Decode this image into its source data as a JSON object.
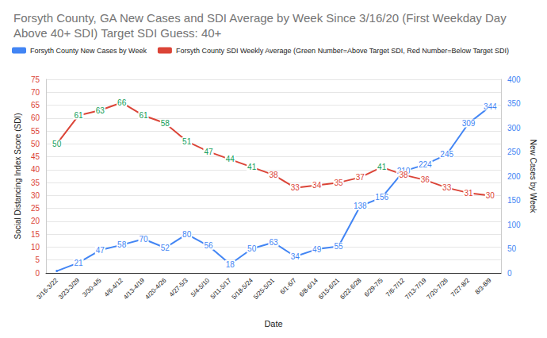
{
  "chart_data": {
    "type": "line",
    "title": "Forsyth County, GA New Cases and SDI Average by Week Since 3/16/20 (First Weekday Day Above 40+ SDI) Target SDI Guess: 40+",
    "x_label": "Date",
    "y_label": "Social Distancing Index Score (SDI)",
    "y2_label": "New Cases by Week",
    "categories": [
      "3/16-3/22",
      "3/23-3/29",
      "3/30-4/5",
      "4/6-4/12",
      "4/13-4/19",
      "4/20-4/26",
      "4/27-5/3",
      "5/4-5/10",
      "5/11-5/17",
      "5/18-5/24",
      "5/25-5/31",
      "6/1-6/7",
      "6/8-6/14",
      "6/15-6/21",
      "6/22-6/28",
      "6/29-7/5",
      "7/6-7/12",
      "7/13-7/19",
      "7/20-7/26",
      "7/27-8/2",
      "8/3-8/9"
    ],
    "series": [
      {
        "name": "Forsyth County New Cases by Week",
        "color": "#4285f4",
        "axis": "y2",
        "marker": "circle",
        "values": [
          4,
          21,
          47,
          58,
          70,
          52,
          80,
          56,
          18,
          50,
          63,
          34,
          49,
          55,
          138,
          156,
          210,
          224,
          245,
          309,
          344
        ],
        "value_labels": [
          null,
          "21",
          "47",
          "58",
          "70",
          "52",
          "80",
          "56",
          "18",
          "50",
          "63",
          "34",
          "49",
          "55",
          "138",
          "156",
          "210",
          "224",
          "245",
          "309",
          "344"
        ]
      },
      {
        "name": "Forsyth County SDI Weekly Average (Green Number=Above Target SDI, Red Number=Below Target SDI)",
        "color": "#db4437",
        "axis": "y",
        "marker": "circle",
        "values": [
          50,
          61,
          63,
          66,
          61,
          58,
          51,
          47,
          44,
          41,
          38,
          33,
          34,
          35,
          37,
          41,
          38,
          36,
          33,
          31,
          30
        ],
        "target_sdi": 40,
        "above_color": "#0f9d58",
        "below_color": "#db4437"
      }
    ],
    "ylim": [
      0,
      75
    ],
    "yticks": [
      0,
      5,
      10,
      15,
      20,
      25,
      30,
      35,
      40,
      45,
      50,
      55,
      60,
      65,
      70,
      75
    ],
    "y2lim": [
      0,
      400
    ],
    "y2ticks": [
      0,
      50,
      100,
      150,
      200,
      250,
      300,
      350,
      400
    ],
    "grid": true,
    "legend": "top",
    "data_labels": true
  }
}
